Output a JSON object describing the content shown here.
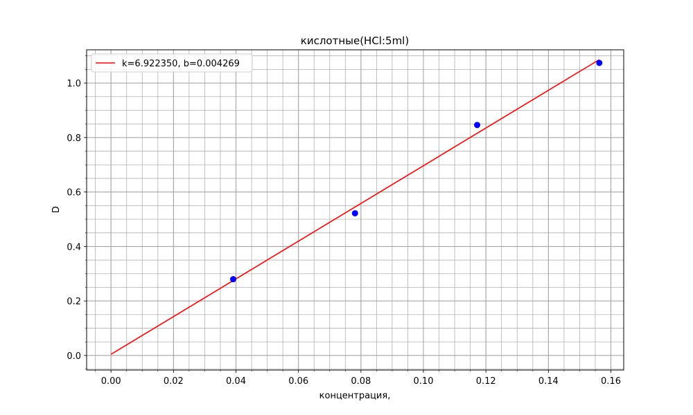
{
  "chart_data": {
    "type": "scatter",
    "title": "кислотные(HCl:5ml)",
    "xlabel": "концентрация,",
    "ylabel": "D",
    "xlim": [
      -0.0078,
      0.1641
    ],
    "ylim": [
      -0.0535,
      1.1221
    ],
    "xticks": [
      0.0,
      0.02,
      0.04,
      0.06,
      0.08,
      0.1,
      0.12,
      0.14,
      0.16
    ],
    "xtick_labels": [
      "0.00",
      "0.02",
      "0.04",
      "0.06",
      "0.08",
      "0.10",
      "0.12",
      "0.14",
      "0.16"
    ],
    "yticks": [
      0.0,
      0.2,
      0.4,
      0.6,
      0.8,
      1.0
    ],
    "ytick_labels": [
      "0.0",
      "0.2",
      "0.4",
      "0.6",
      "0.8",
      "1.0"
    ],
    "xminor_step": 0.005,
    "yminor_step": 0.05,
    "grid": true,
    "legend_position": "top-left",
    "points": {
      "color": "#0000ff",
      "x": [
        0.0391,
        0.0781,
        0.1172,
        0.1563
      ],
      "y": [
        0.28,
        0.522,
        0.846,
        1.074
      ]
    },
    "fit_line": {
      "name": "k=6.922350, b=0.004269",
      "color": "#ff0000",
      "k": 6.92235,
      "b": 0.004269,
      "x_start": 0.0,
      "x_end": 0.1563
    }
  }
}
